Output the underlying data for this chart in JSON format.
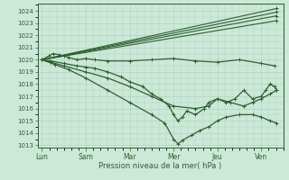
{
  "xlabel": "Pression niveau de la mer( hPa )",
  "bg_color": "#cce8d8",
  "grid_color": "#aacfbb",
  "line_color": "#2d6030",
  "ylim_low": 1012.8,
  "ylim_high": 1024.6,
  "xlim_low": -0.1,
  "xlim_high": 5.5,
  "yticks": [
    1013,
    1014,
    1015,
    1016,
    1017,
    1018,
    1019,
    1020,
    1021,
    1022,
    1023,
    1024
  ],
  "xtick_positions": [
    0,
    1,
    2,
    3,
    4,
    5
  ],
  "xtick_labels": [
    "Lun",
    "Sam",
    "Mar",
    "Mer",
    "Jeu",
    "Ven"
  ],
  "series": [
    {
      "x": [
        0.0,
        0.15,
        0.25,
        0.4,
        0.5,
        0.6,
        0.8,
        1.0,
        1.2,
        1.5,
        2.0,
        2.5,
        3.0,
        3.5,
        4.0,
        4.5,
        5.0,
        5.3
      ],
      "y": [
        1020.0,
        1020.3,
        1020.5,
        1020.4,
        1020.3,
        1020.2,
        1020.0,
        1020.1,
        1020.0,
        1019.9,
        1019.9,
        1020.0,
        1020.1,
        1019.9,
        1019.8,
        1020.0,
        1019.7,
        1019.5
      ],
      "lw": 0.9
    },
    {
      "x": [
        0.0,
        5.35
      ],
      "y": [
        1020.0,
        1023.2
      ],
      "lw": 0.8
    },
    {
      "x": [
        0.0,
        5.35
      ],
      "y": [
        1020.0,
        1023.6
      ],
      "lw": 0.8
    },
    {
      "x": [
        0.0,
        5.35
      ],
      "y": [
        1020.0,
        1023.9
      ],
      "lw": 0.8
    },
    {
      "x": [
        0.0,
        5.35
      ],
      "y": [
        1020.0,
        1024.2
      ],
      "lw": 0.8
    },
    {
      "x": [
        0.0,
        0.2,
        0.5,
        1.0,
        1.5,
        2.0,
        2.5,
        3.0,
        3.5,
        3.8,
        4.0,
        4.3,
        4.6,
        4.8,
        5.0,
        5.2,
        5.35
      ],
      "y": [
        1020.0,
        1019.8,
        1019.5,
        1019.0,
        1018.5,
        1017.8,
        1017.0,
        1016.2,
        1016.0,
        1016.2,
        1016.8,
        1016.5,
        1016.2,
        1016.5,
        1016.8,
        1017.2,
        1017.5
      ],
      "lw": 0.9
    },
    {
      "x": [
        0.0,
        0.3,
        0.6,
        1.0,
        1.5,
        2.0,
        2.5,
        2.8,
        3.0,
        3.1,
        3.2,
        3.4,
        3.6,
        3.8,
        4.0,
        4.2,
        4.5,
        4.8,
        5.0,
        5.2,
        5.35
      ],
      "y": [
        1020.0,
        1019.6,
        1019.2,
        1018.5,
        1017.5,
        1016.5,
        1015.5,
        1014.8,
        1013.5,
        1013.1,
        1013.4,
        1013.8,
        1014.2,
        1014.5,
        1015.0,
        1015.3,
        1015.5,
        1015.5,
        1015.3,
        1015.0,
        1014.8
      ],
      "lw": 0.9
    },
    {
      "x": [
        0.0,
        0.2,
        0.5,
        0.8,
        1.0,
        1.2,
        1.5,
        1.8,
        2.0,
        2.3,
        2.5,
        2.7,
        2.9,
        3.0,
        3.1,
        3.2,
        3.3,
        3.5,
        3.7,
        3.8,
        4.0,
        4.2,
        4.4,
        4.6,
        4.8,
        5.0,
        5.1,
        5.2,
        5.3,
        5.35
      ],
      "y": [
        1020.0,
        1019.9,
        1019.7,
        1019.5,
        1019.4,
        1019.3,
        1019.0,
        1018.6,
        1018.2,
        1017.8,
        1017.2,
        1016.8,
        1016.2,
        1015.5,
        1015.0,
        1015.3,
        1015.8,
        1015.5,
        1016.0,
        1016.5,
        1016.8,
        1016.5,
        1016.8,
        1017.5,
        1016.8,
        1017.0,
        1017.5,
        1018.0,
        1017.8,
        1017.5
      ],
      "lw": 0.9
    }
  ]
}
